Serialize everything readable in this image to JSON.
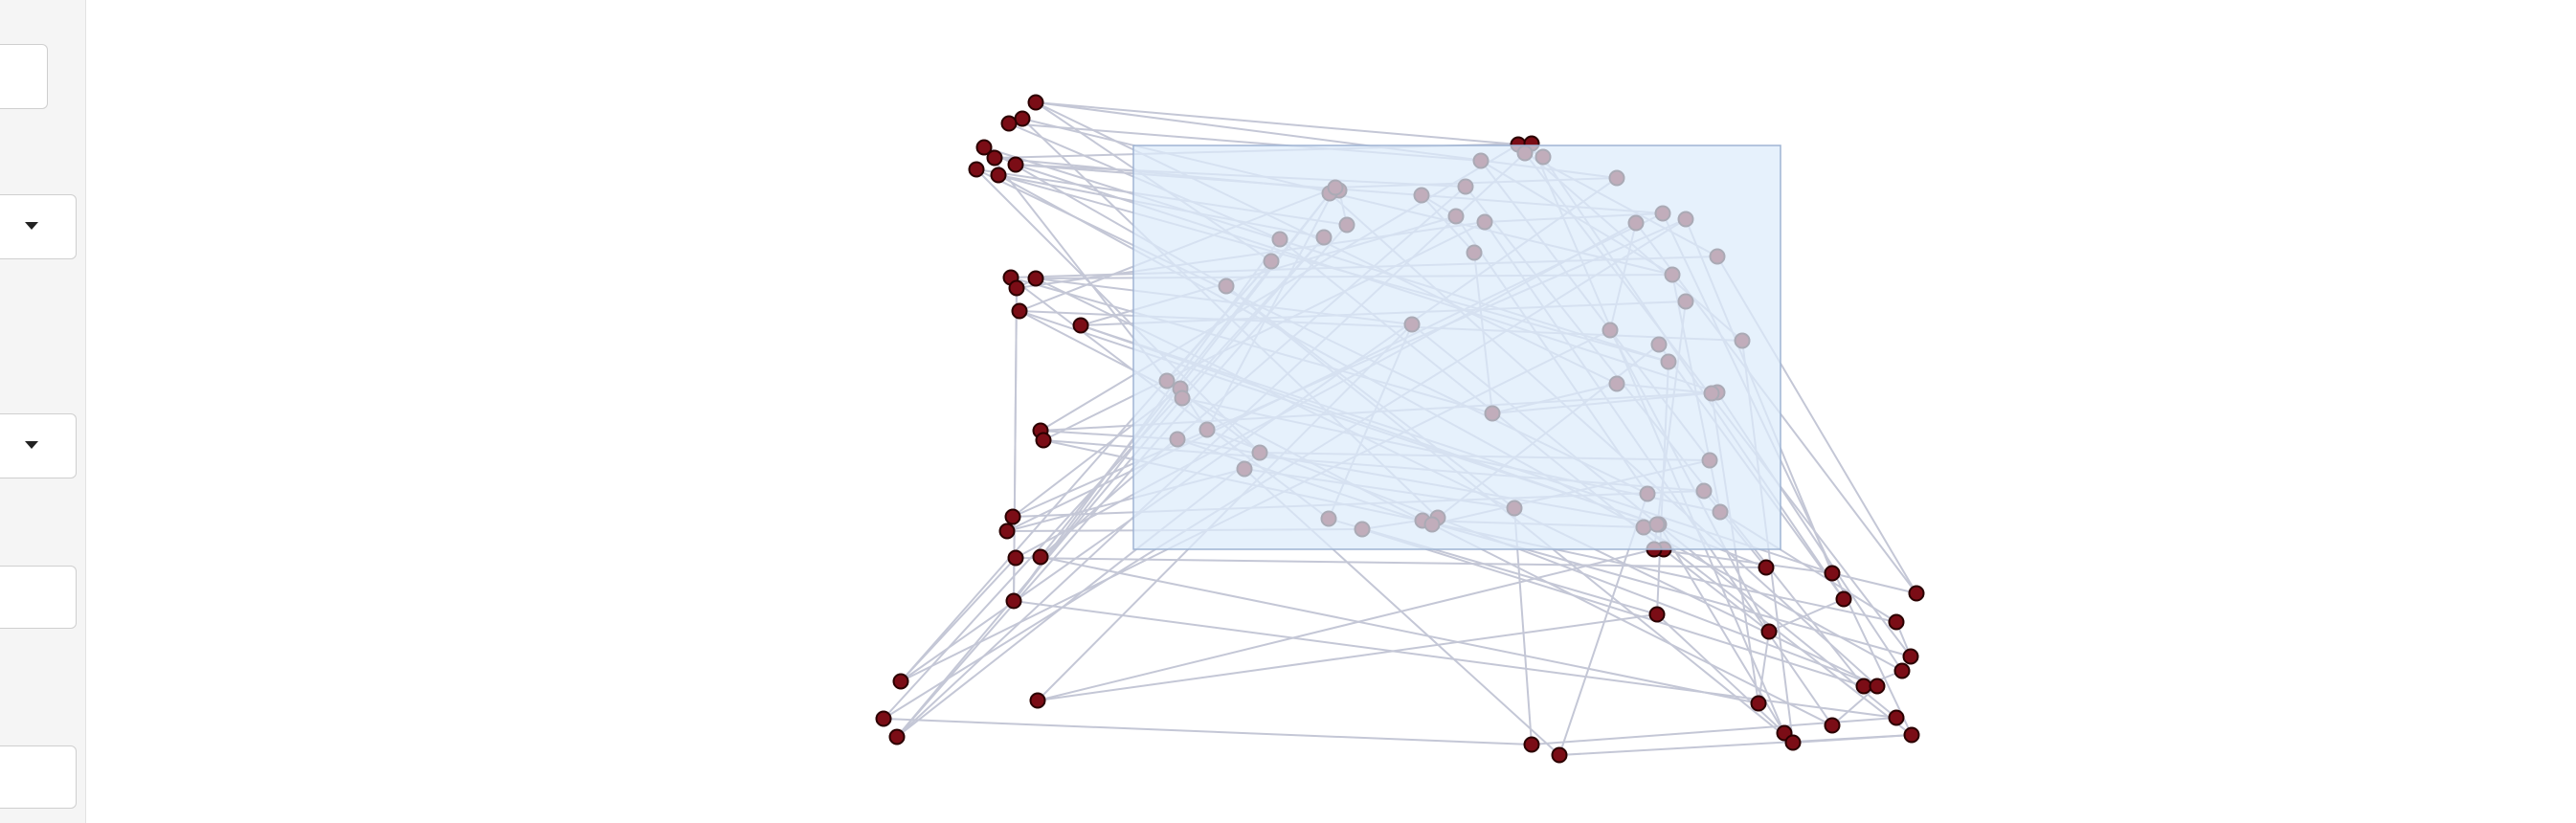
{
  "sidebar": {
    "controls": [
      {
        "kind": "select",
        "value": ""
      },
      {
        "kind": "select",
        "value": ""
      },
      {
        "kind": "select",
        "value": ""
      },
      {
        "kind": "input",
        "value": ""
      },
      {
        "kind": "input",
        "value": ""
      }
    ]
  },
  "graph": {
    "node_color": "#7b0d16",
    "node_stroke": "#2a0000",
    "edge_color": "#c4c7d6",
    "selection_fill": "#dcebfb",
    "selection_stroke": "#9fb4d3"
  },
  "icons": {
    "dropdown": "chevron-down-icon"
  }
}
